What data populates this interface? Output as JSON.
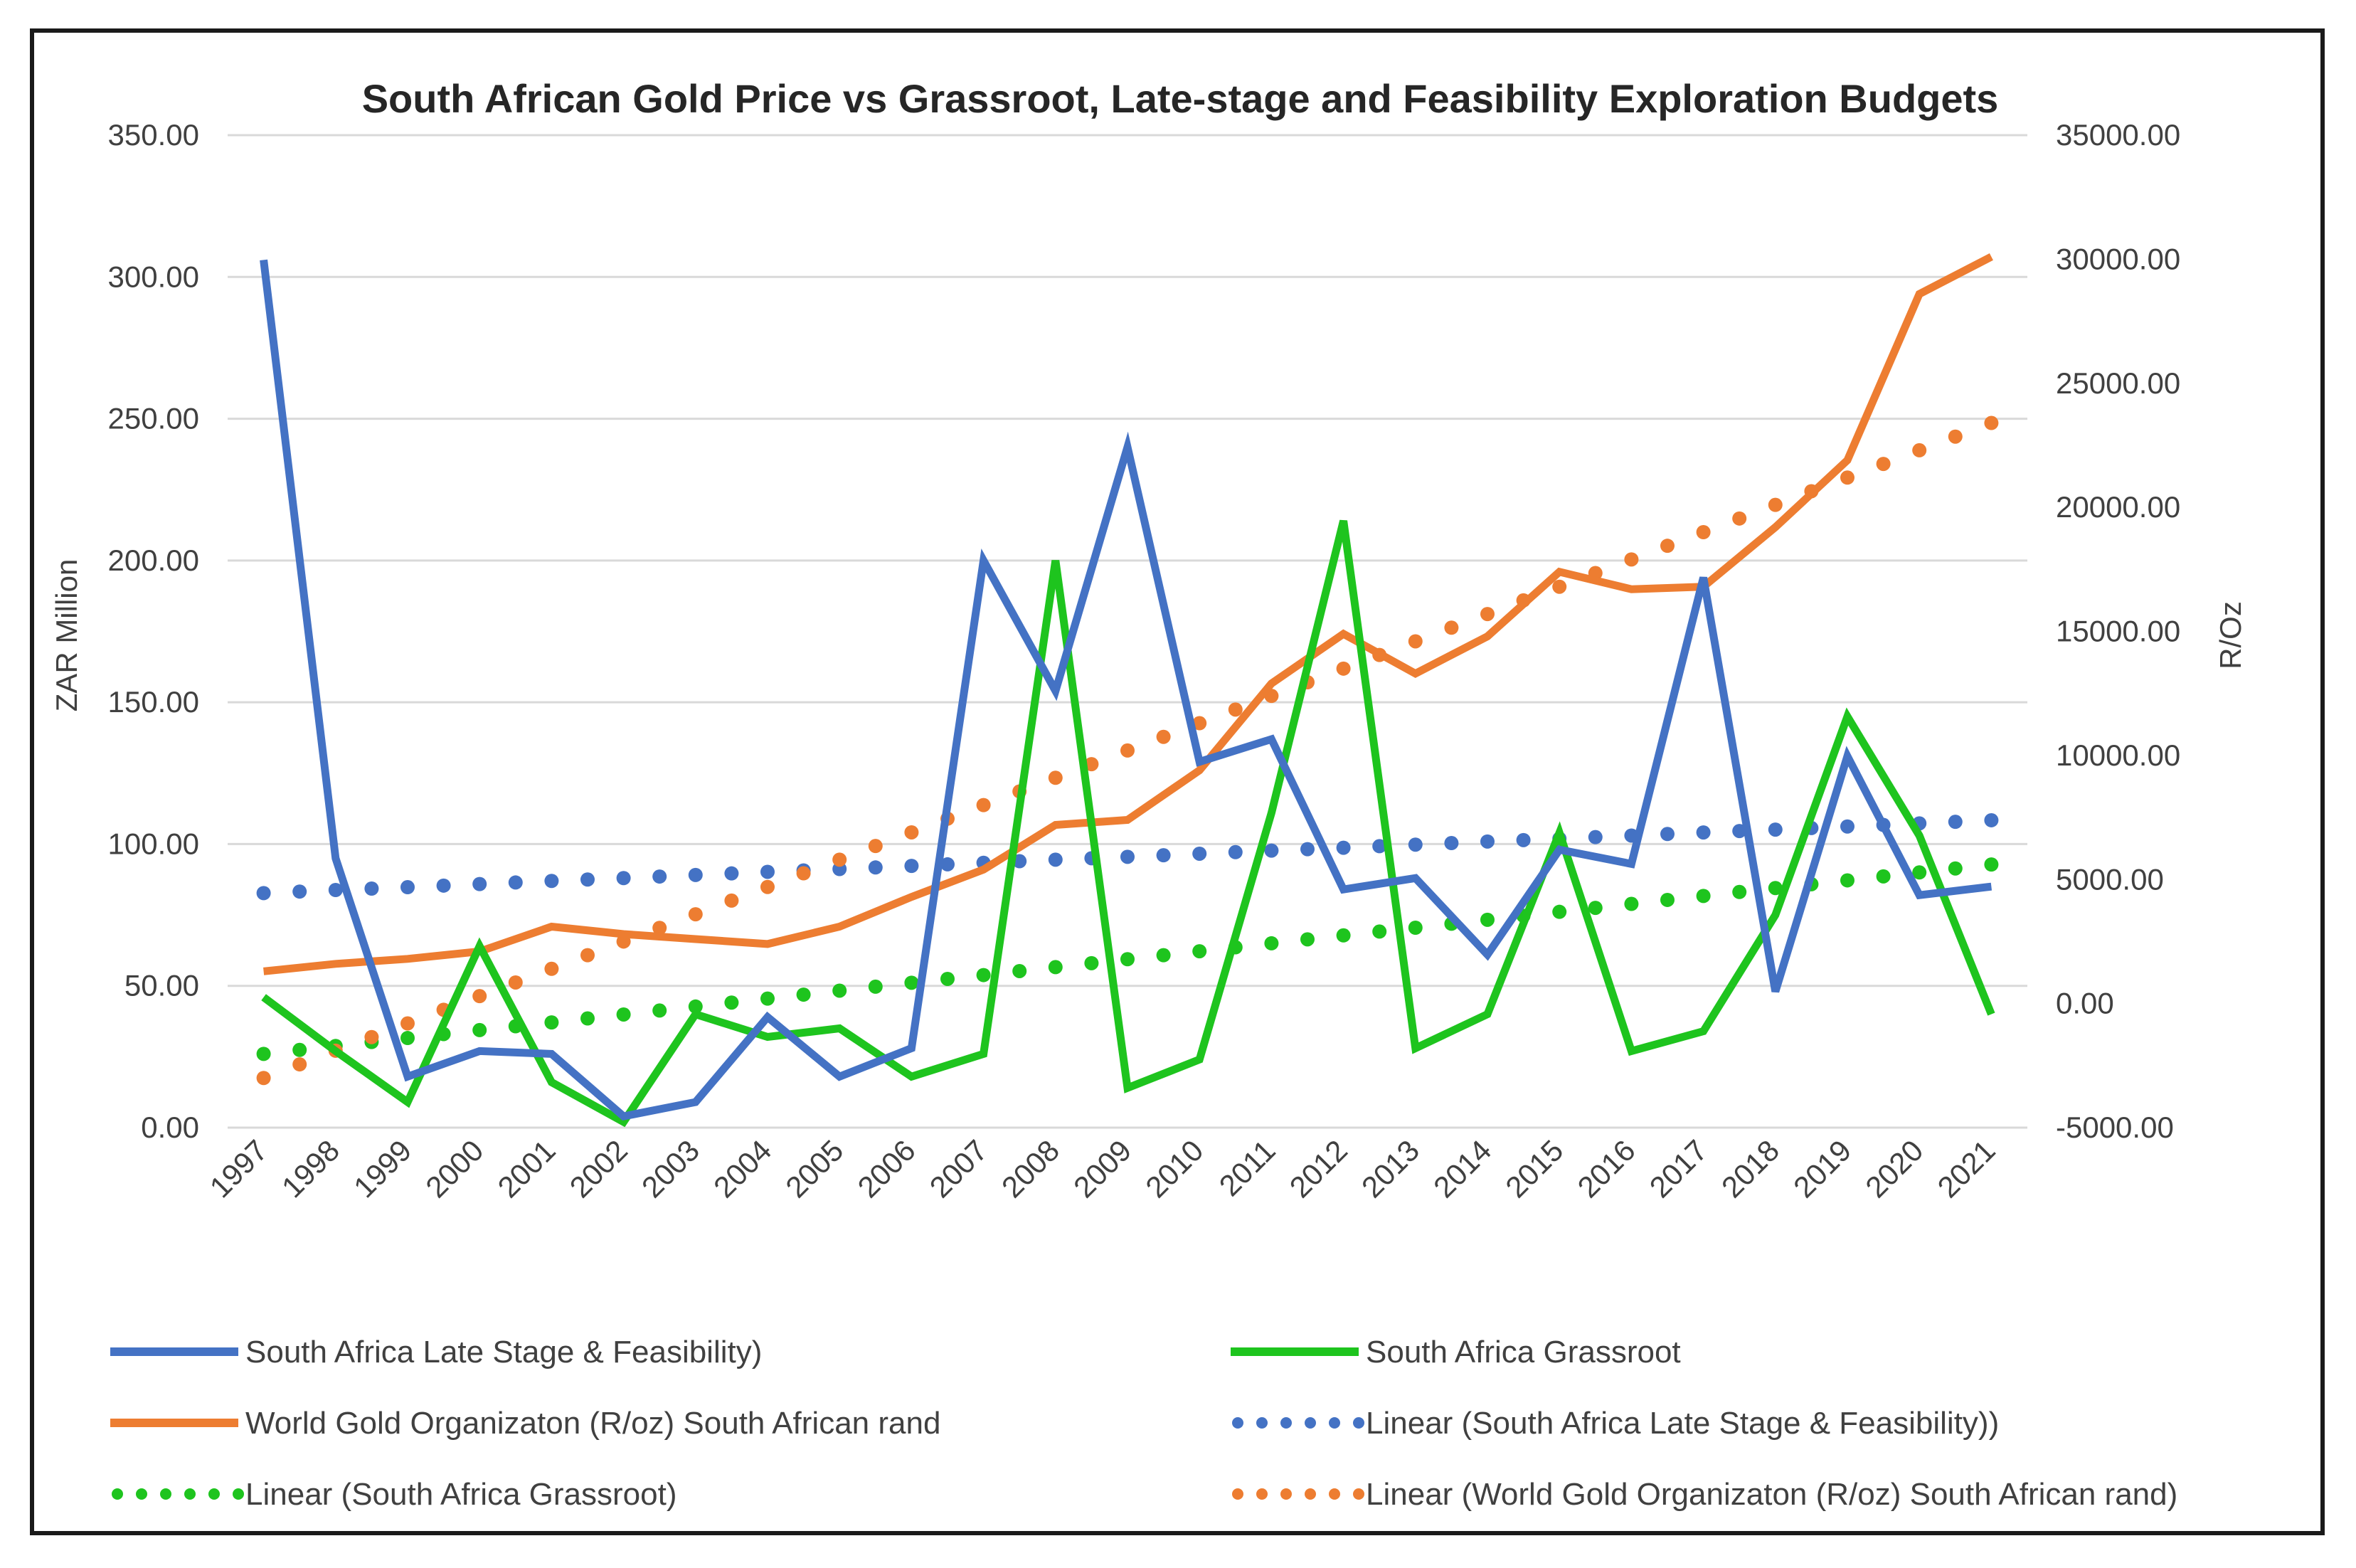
{
  "chart_data": {
    "type": "line",
    "title": "South African Gold Price vs Grassroot, Late-stage and Feasibility Exploration Budgets",
    "ylabel": "ZAR Million",
    "y2label": "R/Oz",
    "ylim": [
      0,
      350
    ],
    "y2lim": [
      -5000,
      35000
    ],
    "yticks": [
      "0.00",
      "50.00",
      "100.00",
      "150.00",
      "200.00",
      "250.00",
      "300.00",
      "350.00"
    ],
    "y2ticks": [
      "-5000.00",
      "0.00",
      "5000.00",
      "10000.00",
      "15000.00",
      "20000.00",
      "25000.00",
      "30000.00",
      "35000.00"
    ],
    "categories": [
      "1997",
      "1998",
      "1999",
      "2000",
      "2001",
      "2002",
      "2003",
      "2004",
      "2005",
      "2006",
      "2007",
      "2008",
      "2009",
      "2010",
      "2011",
      "2012",
      "2013",
      "2014",
      "2015",
      "2016",
      "2017",
      "2018",
      "2019",
      "2020",
      "2021"
    ],
    "series": [
      {
        "name": "South Africa Late Stage & Feasibility)",
        "axis": "left",
        "style": "solid",
        "color": "#4472C4",
        "values": [
          306,
          95,
          18,
          27,
          26,
          4,
          9,
          39,
          18,
          28,
          200,
          154,
          240,
          129,
          137,
          84,
          88,
          61,
          98,
          93,
          194,
          48,
          131,
          82,
          85
        ]
      },
      {
        "name": "South Africa Grassroot",
        "axis": "left",
        "style": "solid",
        "color": "#1EC41E",
        "values": [
          46,
          27,
          9,
          64,
          16,
          2,
          40,
          32,
          35,
          18,
          26,
          200,
          14,
          24,
          111,
          214,
          28,
          40,
          104,
          27,
          34,
          75,
          145,
          103,
          40
        ]
      },
      {
        "name": "World Gold Organizaton (R/oz) South African rand",
        "axis": "right",
        "style": "solid",
        "color": "#ED7D31",
        "values": [
          1300,
          1600,
          1800,
          2100,
          3100,
          2800,
          2600,
          2400,
          3100,
          4300,
          5400,
          7200,
          7400,
          9400,
          12900,
          14900,
          13300,
          14800,
          17400,
          16700,
          16800,
          19200,
          21900,
          28600,
          30100
        ]
      },
      {
        "name": "Linear (South Africa Late Stage & Feasibility))",
        "axis": "left",
        "style": "dotted",
        "color": "#4472C4",
        "values": [
          82.7,
          83.8,
          84.8,
          85.9,
          87.0,
          88.0,
          89.1,
          90.2,
          91.2,
          92.3,
          93.4,
          94.5,
          95.5,
          96.6,
          97.7,
          98.7,
          99.8,
          100.9,
          101.9,
          103.0,
          104.1,
          105.1,
          106.2,
          107.3,
          108.4
        ]
      },
      {
        "name": "Linear (South Africa Grassroot)",
        "axis": "left",
        "style": "dotted",
        "color": "#1EC41E",
        "values": [
          26.0,
          28.8,
          31.6,
          34.4,
          37.1,
          39.9,
          42.7,
          45.5,
          48.3,
          51.1,
          53.8,
          56.6,
          59.4,
          62.2,
          65.0,
          67.8,
          70.5,
          73.3,
          76.1,
          78.9,
          81.7,
          84.5,
          87.2,
          90.0,
          92.8
        ]
      },
      {
        "name": "Linear (World Gold Organizaton (R/oz) South African rand)",
        "axis": "right",
        "style": "dotted",
        "color": "#ED7D31",
        "values": [
          -3000,
          -1900,
          -800,
          300,
          1400,
          2500,
          3600,
          4700,
          5800,
          6900,
          8000,
          9100,
          10200,
          11300,
          12400,
          13500,
          14600,
          15700,
          16800,
          17900,
          19000,
          20100,
          21200,
          22300,
          23400
        ]
      }
    ],
    "legend": [
      {
        "label": "South Africa Late Stage & Feasibility)",
        "color": "#4472C4",
        "style": "solid"
      },
      {
        "label": "South Africa Grassroot",
        "color": "#1EC41E",
        "style": "solid"
      },
      {
        "label": "World Gold Organizaton (R/oz) South African rand",
        "color": "#ED7D31",
        "style": "solid"
      },
      {
        "label": "Linear (South Africa Late Stage & Feasibility))",
        "color": "#4472C4",
        "style": "dotted"
      },
      {
        "label": "Linear (South Africa Grassroot)",
        "color": "#1EC41E",
        "style": "dotted"
      },
      {
        "label": "Linear (World Gold Organizaton (R/oz) South African rand)",
        "color": "#ED7D31",
        "style": "dotted"
      }
    ],
    "legend_position": "bottom",
    "grid": true
  }
}
